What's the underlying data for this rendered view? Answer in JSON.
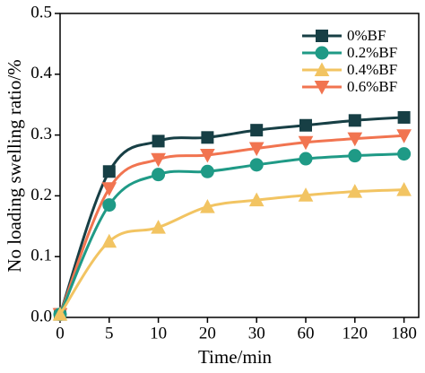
{
  "chart_data": {
    "type": "line",
    "x_label": "Time/min",
    "y_label": "No loading swelling ratio/%",
    "categories": [
      "0",
      "5",
      "10",
      "20",
      "30",
      "60",
      "120",
      "180"
    ],
    "ylim": [
      0,
      0.5
    ],
    "yticks": [
      {
        "value": 0,
        "label": "0.0"
      },
      0.1,
      0.2,
      0.3,
      0.4,
      0.5
    ],
    "legend": "upper right",
    "series": [
      {
        "name": "0%BF",
        "color": "#173f45",
        "marker": "square",
        "values": [
          0.005,
          0.24,
          0.29,
          0.296,
          0.308,
          0.316,
          0.324,
          0.329
        ]
      },
      {
        "name": "0.2%BF",
        "color": "#1f9a86",
        "marker": "circle",
        "values": [
          0.005,
          0.185,
          0.235,
          0.24,
          0.251,
          0.261,
          0.266,
          0.269
        ]
      },
      {
        "name": "0.4%BF",
        "color": "#f2c462",
        "marker": "triangle-up",
        "values": [
          0.005,
          0.125,
          0.148,
          0.182,
          0.193,
          0.201,
          0.207,
          0.21
        ]
      },
      {
        "name": "0.6%BF",
        "color": "#f17450",
        "marker": "triangle-down",
        "values": [
          0.005,
          0.212,
          0.26,
          0.267,
          0.278,
          0.288,
          0.294,
          0.299
        ]
      }
    ]
  }
}
